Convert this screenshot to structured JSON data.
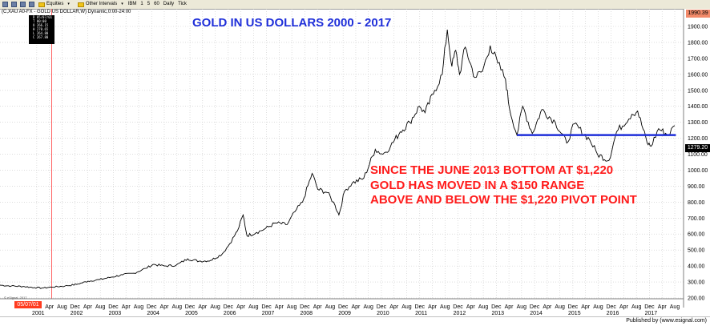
{
  "toolbar": {
    "symbol_box": "C,XAU A0-FX",
    "equities_label": "Equities",
    "other_intervals_label": "Other Intervals",
    "interval_items": [
      "IBM",
      "1",
      "5",
      "60",
      "Daily",
      "Tick"
    ]
  },
  "header_label": "(C,XAU A0-FX - GOLD US DOLLAR,W) Dynamic,0:00-24:00",
  "data_window_lines": [
    "D 05/07/01",
    "T 00:00",
    "O 266.15",
    "H 270.65",
    "L 264.80",
    "C 267.80"
  ],
  "title": "GOLD IN US DOLLARS 2000 - 2017",
  "annotation_lines": [
    "SINCE THE JUNE 2013 BOTTOM AT $1,220",
    "GOLD HAS MOVED IN A $150 RANGE",
    "ABOVE AND BELOW THE $1,220 PIVOT POINT"
  ],
  "last_price_tag": "1279.20",
  "top_price_tag": "1990.39",
  "cursor_date_tag": "05/07/01",
  "watermark": "© eSignal, 2017",
  "published_by": "Published by (www.esignal.com)",
  "colors": {
    "price_line": "#000000",
    "pivot_line": "#1f2fd9",
    "title": "#1f2fd9",
    "annotation": "#ff1a1a",
    "grid": "#c8c8c8",
    "cursor_line": "#ff6060"
  },
  "chart_data": {
    "type": "line",
    "title": "GOLD IN US DOLLARS 2000 - 2017",
    "xlabel": "",
    "ylabel": "",
    "ylim": [
      200,
      1900
    ],
    "grid": true,
    "y_ticks": [
      200,
      300,
      400,
      500,
      600,
      700,
      800,
      900,
      1000,
      1100,
      1200,
      1300,
      1400,
      1500,
      1600,
      1700,
      1800,
      1900
    ],
    "x_tick_labels": [
      {
        "label": "Dec",
        "t": 2000.96
      },
      {
        "label": "Apr",
        "t": 2001.29
      },
      {
        "label": "Aug",
        "t": 2001.62
      },
      {
        "label": "Dec",
        "t": 2001.96
      },
      {
        "label": "Apr",
        "t": 2002.29
      },
      {
        "label": "Aug",
        "t": 2002.62
      },
      {
        "label": "Dec",
        "t": 2002.96
      },
      {
        "label": "Apr",
        "t": 2003.29
      },
      {
        "label": "Aug",
        "t": 2003.62
      },
      {
        "label": "Dec",
        "t": 2003.96
      },
      {
        "label": "Apr",
        "t": 2004.29
      },
      {
        "label": "Aug",
        "t": 2004.62
      },
      {
        "label": "Dec",
        "t": 2004.96
      },
      {
        "label": "Apr",
        "t": 2005.29
      },
      {
        "label": "Aug",
        "t": 2005.62
      },
      {
        "label": "Dec",
        "t": 2005.96
      },
      {
        "label": "Apr",
        "t": 2006.29
      },
      {
        "label": "Aug",
        "t": 2006.62
      },
      {
        "label": "Dec",
        "t": 2006.96
      },
      {
        "label": "Apr",
        "t": 2007.29
      },
      {
        "label": "Aug",
        "t": 2007.62
      },
      {
        "label": "Dec",
        "t": 2007.96
      },
      {
        "label": "Apr",
        "t": 2008.29
      },
      {
        "label": "Aug",
        "t": 2008.62
      },
      {
        "label": "Dec",
        "t": 2008.96
      },
      {
        "label": "Apr",
        "t": 2009.29
      },
      {
        "label": "Aug",
        "t": 2009.62
      },
      {
        "label": "Dec",
        "t": 2009.96
      },
      {
        "label": "Apr",
        "t": 2010.29
      },
      {
        "label": "Aug",
        "t": 2010.62
      },
      {
        "label": "Dec",
        "t": 2010.96
      },
      {
        "label": "Apr",
        "t": 2011.29
      },
      {
        "label": "Aug",
        "t": 2011.62
      },
      {
        "label": "Dec",
        "t": 2011.96
      },
      {
        "label": "Apr",
        "t": 2012.29
      },
      {
        "label": "Aug",
        "t": 2012.62
      },
      {
        "label": "Dec",
        "t": 2012.96
      },
      {
        "label": "Apr",
        "t": 2013.29
      },
      {
        "label": "Aug",
        "t": 2013.62
      },
      {
        "label": "Dec",
        "t": 2013.96
      },
      {
        "label": "Apr",
        "t": 2014.29
      },
      {
        "label": "Aug",
        "t": 2014.62
      },
      {
        "label": "Dec",
        "t": 2014.96
      },
      {
        "label": "Apr",
        "t": 2015.29
      },
      {
        "label": "Aug",
        "t": 2015.62
      },
      {
        "label": "Dec",
        "t": 2015.96
      },
      {
        "label": "Apr",
        "t": 2016.29
      },
      {
        "label": "Aug",
        "t": 2016.62
      },
      {
        "label": "Dec",
        "t": 2016.96
      },
      {
        "label": "Apr",
        "t": 2017.29
      },
      {
        "label": "Aug",
        "t": 2017.62
      }
    ],
    "year_labels": [
      {
        "label": "2001",
        "t": 2001.0
      },
      {
        "label": "2002",
        "t": 2002.0
      },
      {
        "label": "2003",
        "t": 2003.0
      },
      {
        "label": "2004",
        "t": 2004.0
      },
      {
        "label": "2005",
        "t": 2005.0
      },
      {
        "label": "2006",
        "t": 2006.0
      },
      {
        "label": "2007",
        "t": 2007.0
      },
      {
        "label": "2008",
        "t": 2008.0
      },
      {
        "label": "2009",
        "t": 2009.0
      },
      {
        "label": "2010",
        "t": 2010.0
      },
      {
        "label": "2011",
        "t": 2011.0
      },
      {
        "label": "2012",
        "t": 2012.0
      },
      {
        "label": "2013",
        "t": 2013.0
      },
      {
        "label": "2014",
        "t": 2014.0
      },
      {
        "label": "2015",
        "t": 2015.0
      },
      {
        "label": "2016",
        "t": 2016.0
      },
      {
        "label": "2017",
        "t": 2017.0
      }
    ],
    "series": [
      {
        "values": [
          [
            2000.0,
            280
          ],
          [
            2000.3,
            275
          ],
          [
            2000.6,
            272
          ],
          [
            2000.9,
            265
          ],
          [
            2001.1,
            262
          ],
          [
            2001.35,
            268
          ],
          [
            2001.7,
            275
          ],
          [
            2002.0,
            285
          ],
          [
            2002.3,
            305
          ],
          [
            2002.6,
            315
          ],
          [
            2002.9,
            330
          ],
          [
            2003.2,
            345
          ],
          [
            2003.5,
            355
          ],
          [
            2003.8,
            385
          ],
          [
            2004.0,
            410
          ],
          [
            2004.3,
            400
          ],
          [
            2004.6,
            405
          ],
          [
            2004.9,
            445
          ],
          [
            2005.2,
            430
          ],
          [
            2005.5,
            435
          ],
          [
            2005.8,
            475
          ],
          [
            2006.0,
            540
          ],
          [
            2006.2,
            620
          ],
          [
            2006.35,
            720
          ],
          [
            2006.45,
            590
          ],
          [
            2006.7,
            610
          ],
          [
            2006.9,
            630
          ],
          [
            2007.2,
            670
          ],
          [
            2007.5,
            660
          ],
          [
            2007.7,
            740
          ],
          [
            2007.9,
            800
          ],
          [
            2008.15,
            980
          ],
          [
            2008.3,
            880
          ],
          [
            2008.55,
            860
          ],
          [
            2008.75,
            780
          ],
          [
            2008.85,
            720
          ],
          [
            2009.0,
            870
          ],
          [
            2009.2,
            920
          ],
          [
            2009.5,
            950
          ],
          [
            2009.8,
            1130
          ],
          [
            2010.0,
            1100
          ],
          [
            2010.2,
            1150
          ],
          [
            2010.45,
            1240
          ],
          [
            2010.7,
            1300
          ],
          [
            2010.95,
            1400
          ],
          [
            2011.1,
            1360
          ],
          [
            2011.35,
            1500
          ],
          [
            2011.55,
            1600
          ],
          [
            2011.68,
            1880
          ],
          [
            2011.8,
            1650
          ],
          [
            2011.9,
            1750
          ],
          [
            2012.0,
            1600
          ],
          [
            2012.15,
            1770
          ],
          [
            2012.4,
            1580
          ],
          [
            2012.6,
            1620
          ],
          [
            2012.8,
            1780
          ],
          [
            2013.0,
            1670
          ],
          [
            2013.2,
            1570
          ],
          [
            2013.3,
            1390
          ],
          [
            2013.5,
            1220
          ],
          [
            2013.65,
            1400
          ],
          [
            2013.9,
            1230
          ],
          [
            2014.15,
            1380
          ],
          [
            2014.5,
            1300
          ],
          [
            2014.8,
            1170
          ],
          [
            2015.0,
            1290
          ],
          [
            2015.4,
            1190
          ],
          [
            2015.6,
            1100
          ],
          [
            2015.9,
            1060
          ],
          [
            2016.1,
            1240
          ],
          [
            2016.5,
            1350
          ],
          [
            2016.65,
            1370
          ],
          [
            2016.9,
            1170
          ],
          [
            2017.0,
            1150
          ],
          [
            2017.2,
            1260
          ],
          [
            2017.45,
            1220
          ],
          [
            2017.62,
            1279.2
          ]
        ]
      }
    ],
    "pivot_line": {
      "y": 1220,
      "x_start": 2013.5,
      "x_end": 2017.65
    },
    "cursor_date_t": 2001.35
  }
}
